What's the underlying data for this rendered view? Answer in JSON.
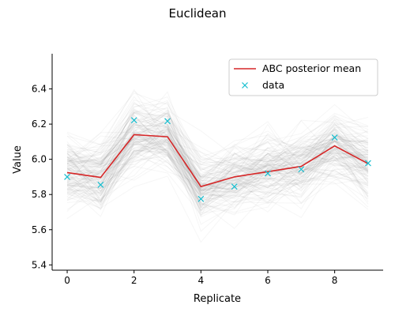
{
  "chart_data": {
    "type": "line",
    "title": "Euclidean",
    "xlabel": "Replicate",
    "ylabel": "Value",
    "xlim": [
      -0.45,
      9.45
    ],
    "ylim": [
      5.37,
      6.6
    ],
    "xticks": [
      0,
      2,
      4,
      6,
      8
    ],
    "yticks": [
      5.4,
      5.6,
      5.8,
      6.0,
      6.2,
      6.4
    ],
    "x": [
      0,
      1,
      2,
      3,
      4,
      5,
      6,
      7,
      8,
      9
    ],
    "series": [
      {
        "name": "ABC posterior mean",
        "kind": "line",
        "color": "#d62728",
        "values": [
          5.925,
          5.897,
          6.14,
          6.128,
          5.845,
          5.9,
          5.93,
          5.96,
          6.076,
          5.975
        ]
      },
      {
        "name": "data",
        "kind": "marker",
        "marker": "x",
        "color": "#17becf",
        "values": [
          5.9,
          5.855,
          6.222,
          6.217,
          5.775,
          5.845,
          5.92,
          5.943,
          6.124,
          5.978
        ]
      }
    ],
    "posterior_samples": {
      "color": "#808080",
      "spread": 0.12
    },
    "legend": {
      "position": "top-right"
    },
    "grid": false
  }
}
